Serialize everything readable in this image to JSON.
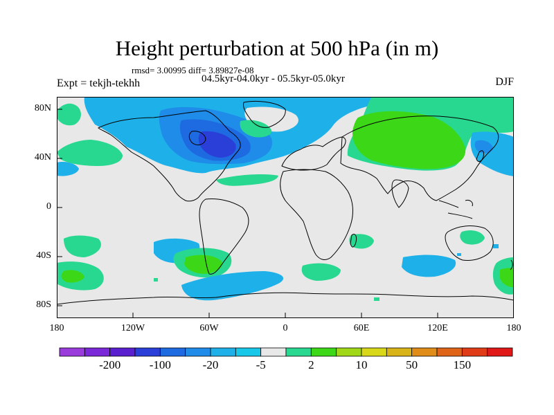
{
  "title": "Height perturbation at 500 hPa (in m)",
  "stats": "rmsd= 3.00995 diff= 3.89827e-08",
  "period": "04.5kyr-04.0kyr - 05.5kyr-05.0kyr",
  "experiment": "Expt = tekjh-tekhh",
  "season": "DJF",
  "map": {
    "projection": "cylindrical-equidistant",
    "lon_range": [
      -180,
      180
    ],
    "lat_range": [
      -90,
      90
    ],
    "y_ticks": [
      "80N",
      "40N",
      "0",
      "40S",
      "80S"
    ],
    "x_ticks": [
      "180",
      "120W",
      "60W",
      "0",
      "60E",
      "120E",
      "180"
    ],
    "background_color": "#e8e8e8"
  },
  "colorbar": {
    "colors": [
      "#9a3cdc",
      "#7a28d8",
      "#5a20d0",
      "#2a3fd8",
      "#1e6ae0",
      "#1e8ce8",
      "#1eb0e8",
      "#18c8e8",
      "#e8e8e8",
      "#28d890",
      "#3cd818",
      "#a0d818",
      "#d8d818",
      "#d8b418",
      "#e08c18",
      "#e06418",
      "#e03c18",
      "#e01818"
    ],
    "labels": [
      "-200",
      "-100",
      "-20",
      "-5",
      "2",
      "10",
      "50",
      "150"
    ]
  },
  "regions": [
    {
      "name": "arctic-negative",
      "fill": "#1eb0e8"
    },
    {
      "name": "north-america-low",
      "fill": "#1e6ae0"
    },
    {
      "name": "eurasia-high",
      "fill": "#3cd818"
    },
    {
      "name": "southern-ocean-low",
      "fill": "#1eb0e8"
    },
    {
      "name": "south-atlantic-high",
      "fill": "#3cd818"
    }
  ]
}
